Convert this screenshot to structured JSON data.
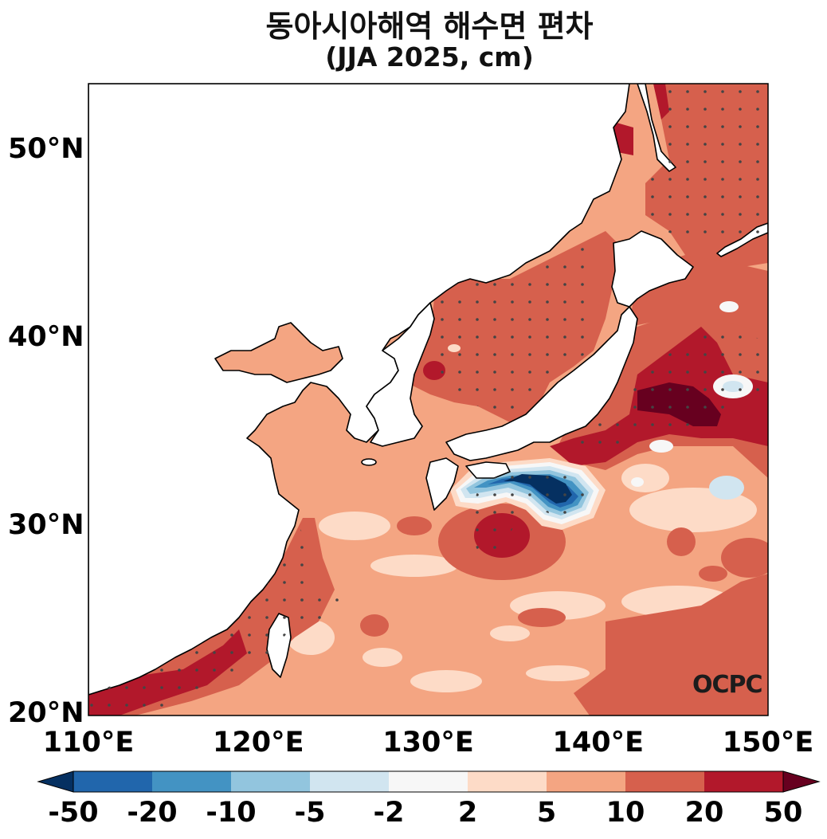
{
  "title": "동아시아해역 해수면 편차",
  "subtitle": "(JJA 2025, cm)",
  "logo_text": "OCPC",
  "axes": {
    "lat_labels": [
      {
        "value": 50,
        "text": "50°N"
      },
      {
        "value": 40,
        "text": "40°N"
      },
      {
        "value": 30,
        "text": "30°N"
      },
      {
        "value": 20,
        "text": "20°N"
      }
    ],
    "lon_labels": [
      {
        "value": 110,
        "text": "110°E"
      },
      {
        "value": 120,
        "text": "120°E"
      },
      {
        "value": 130,
        "text": "130°E"
      },
      {
        "value": 140,
        "text": "140°E"
      },
      {
        "value": 150,
        "text": "150°E"
      }
    ]
  },
  "colorbar": {
    "ticks": [
      "-50",
      "-20",
      "-10",
      "-5",
      "-2",
      "2",
      "5",
      "10",
      "20",
      "50"
    ],
    "colors": [
      "#053061",
      "#2166ac",
      "#4393c3",
      "#92c5de",
      "#d1e5f0",
      "#f7f7f7",
      "#fddbc7",
      "#f4a582",
      "#d6604d",
      "#b2182b",
      "#67001f"
    ]
  }
}
